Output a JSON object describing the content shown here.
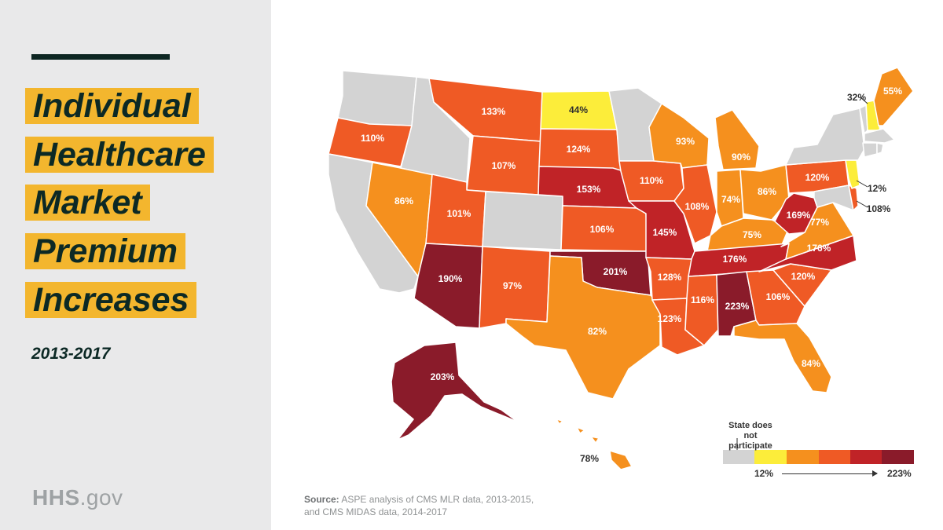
{
  "title_lines": [
    "Individual",
    "Healthcare",
    "Market",
    "Premium",
    "Increases"
  ],
  "years": "2013-2017",
  "brand": {
    "bold": "HHS",
    "rest": ".gov"
  },
  "source": {
    "label": "Source:",
    "text": "ASPE analysis of CMS MLR data, 2013-2015, and CMS MIDAS data, 2014-2017"
  },
  "legend": {
    "note": "State does not participate",
    "min": "12%",
    "max": "223%",
    "colors": [
      "#d3d3d3",
      "#fced3a",
      "#f5901e",
      "#ef5a25",
      "#c02327",
      "#8a1b2a"
    ]
  },
  "states": {
    "wa": {
      "name": "Washington",
      "value": "",
      "color": "#d3d3d3"
    },
    "or": {
      "name": "Oregon",
      "value": "110%",
      "color": "#ef5a25"
    },
    "ca": {
      "name": "California",
      "value": "",
      "color": "#d3d3d3"
    },
    "nv": {
      "name": "Nevada",
      "value": "86%",
      "color": "#f5901e"
    },
    "id": {
      "name": "Idaho",
      "value": "",
      "color": "#d3d3d3"
    },
    "mt": {
      "name": "Montana",
      "value": "133%",
      "color": "#ef5a25"
    },
    "wy": {
      "name": "Wyoming",
      "value": "107%",
      "color": "#ef5a25"
    },
    "ut": {
      "name": "Utah",
      "value": "101%",
      "color": "#ef5a25"
    },
    "az": {
      "name": "Arizona",
      "value": "190%",
      "color": "#8a1b2a"
    },
    "co": {
      "name": "Colorado",
      "value": "",
      "color": "#d3d3d3"
    },
    "nm": {
      "name": "New Mexico",
      "value": "97%",
      "color": "#ef5a25"
    },
    "nd": {
      "name": "North Dakota",
      "value": "44%",
      "color": "#fced3a"
    },
    "sd": {
      "name": "South Dakota",
      "value": "124%",
      "color": "#ef5a25"
    },
    "ne": {
      "name": "Nebraska",
      "value": "153%",
      "color": "#c02327"
    },
    "ks": {
      "name": "Kansas",
      "value": "106%",
      "color": "#ef5a25"
    },
    "ok": {
      "name": "Oklahoma",
      "value": "201%",
      "color": "#8a1b2a"
    },
    "tx": {
      "name": "Texas",
      "value": "82%",
      "color": "#f5901e"
    },
    "mn": {
      "name": "Minnesota",
      "value": "",
      "color": "#d3d3d3"
    },
    "ia": {
      "name": "Iowa",
      "value": "110%",
      "color": "#ef5a25"
    },
    "mo": {
      "name": "Missouri",
      "value": "145%",
      "color": "#c02327"
    },
    "ar": {
      "name": "Arkansas",
      "value": "128%",
      "color": "#ef5a25"
    },
    "la": {
      "name": "Louisiana",
      "value": "123%",
      "color": "#ef5a25"
    },
    "wi": {
      "name": "Wisconsin",
      "value": "93%",
      "color": "#f5901e"
    },
    "il": {
      "name": "Illinois",
      "value": "108%",
      "color": "#ef5a25"
    },
    "mi": {
      "name": "Michigan",
      "value": "90%",
      "color": "#f5901e"
    },
    "in": {
      "name": "Indiana",
      "value": "74%",
      "color": "#f5901e"
    },
    "oh": {
      "name": "Ohio",
      "value": "86%",
      "color": "#f5901e"
    },
    "ky": {
      "name": "Kentucky",
      "value": "75%",
      "color": "#f5901e"
    },
    "tn": {
      "name": "Tennessee",
      "value": "176%",
      "color": "#c02327"
    },
    "ms": {
      "name": "Mississippi",
      "value": "116%",
      "color": "#ef5a25"
    },
    "al": {
      "name": "Alabama",
      "value": "223%",
      "color": "#8a1b2a"
    },
    "ga": {
      "name": "Georgia",
      "value": "106%",
      "color": "#ef5a25"
    },
    "fl": {
      "name": "Florida",
      "value": "84%",
      "color": "#f5901e"
    },
    "sc": {
      "name": "South Carolina",
      "value": "120%",
      "color": "#ef5a25"
    },
    "nc": {
      "name": "North Carolina",
      "value": "176%",
      "color": "#c02327"
    },
    "va": {
      "name": "Virginia",
      "value": "77%",
      "color": "#f5901e"
    },
    "wv": {
      "name": "West Virginia",
      "value": "169%",
      "color": "#c02327"
    },
    "pa": {
      "name": "Pennsylvania",
      "value": "120%",
      "color": "#ef5a25"
    },
    "ny": {
      "name": "New York",
      "value": "",
      "color": "#d3d3d3"
    },
    "nj": {
      "name": "New Jersey",
      "value": "12%",
      "color": "#fced3a"
    },
    "de": {
      "name": "Delaware",
      "value": "108%",
      "color": "#ef5a25"
    },
    "md": {
      "name": "Maryland",
      "value": "",
      "color": "#d3d3d3"
    },
    "vt": {
      "name": "Vermont",
      "value": "",
      "color": "#d3d3d3"
    },
    "nh": {
      "name": "New Hampshire",
      "value": "32%",
      "color": "#fced3a"
    },
    "me": {
      "name": "Maine",
      "value": "55%",
      "color": "#f5901e"
    },
    "ma": {
      "name": "Massachusetts",
      "value": "",
      "color": "#d3d3d3"
    },
    "ct": {
      "name": "Connecticut",
      "value": "",
      "color": "#d3d3d3"
    },
    "ri": {
      "name": "Rhode Island",
      "value": "",
      "color": "#d3d3d3"
    },
    "ak": {
      "name": "Alaska",
      "value": "203%",
      "color": "#8a1b2a"
    },
    "hi": {
      "name": "Hawaii",
      "value": "78%",
      "color": "#f5901e"
    }
  }
}
